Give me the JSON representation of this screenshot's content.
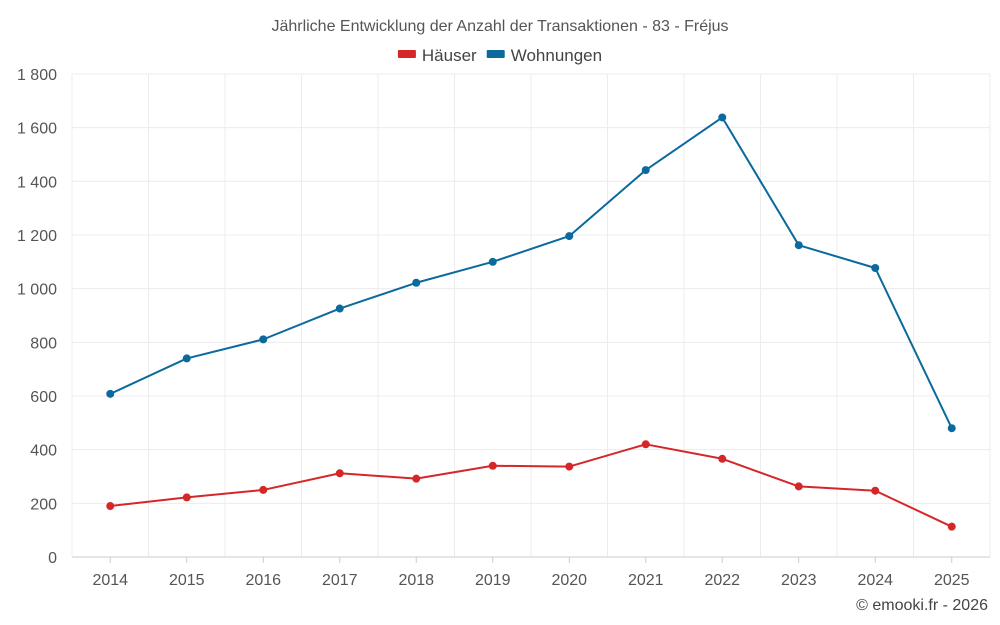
{
  "chart_data": {
    "type": "line",
    "title": "Jährliche Entwicklung der Anzahl der Transaktionen - 83 - Fréjus",
    "categories": [
      "2014",
      "2015",
      "2016",
      "2017",
      "2018",
      "2019",
      "2020",
      "2021",
      "2022",
      "2023",
      "2024",
      "2025"
    ],
    "series": [
      {
        "name": "Häuser",
        "color": "#d62728",
        "values": [
          190,
          222,
          250,
          312,
          292,
          340,
          337,
          420,
          366,
          263,
          247,
          113
        ]
      },
      {
        "name": "Wohnungen",
        "color": "#0a6a9e",
        "values": [
          608,
          740,
          811,
          926,
          1022,
          1100,
          1196,
          1442,
          1638,
          1162,
          1077,
          480
        ]
      }
    ],
    "ylim": [
      0,
      1800
    ],
    "yticks": [
      "0",
      "200",
      "400",
      "600",
      "800",
      "1 000",
      "1 200",
      "1 400",
      "1 600",
      "1 800"
    ],
    "grid": true,
    "legend_position": "top-center",
    "xlabel": "",
    "ylabel": ""
  },
  "credit": "© emooki.fr - 2026"
}
